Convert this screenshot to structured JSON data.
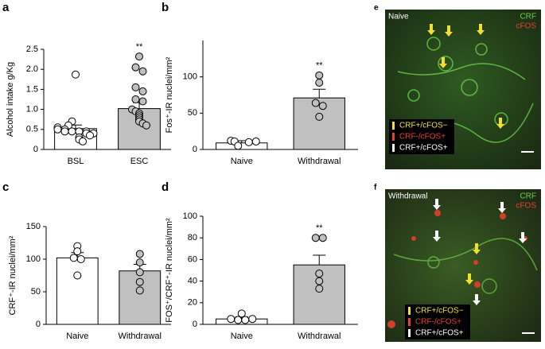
{
  "chart_data": [
    {
      "type": "bar",
      "panel": "a",
      "ylabel": "Alcohol intake g/Kg",
      "categories": [
        "BSL",
        "ESC"
      ],
      "values": [
        0.52,
        1.02
      ],
      "errors": [
        0.09,
        0.15
      ],
      "points": [
        [
          1.87,
          0.7,
          0.6,
          0.55,
          0.5,
          0.5,
          0.45,
          0.45,
          0.45,
          0.45,
          0.4,
          0.4,
          0.35,
          0.3,
          0.25,
          0.2
        ],
        [
          2.32,
          2.05,
          1.95,
          1.55,
          1.45,
          1.25,
          1.2,
          1.0,
          0.95,
          0.9,
          0.85,
          0.8,
          0.75,
          0.7,
          0.65,
          0.6
        ]
      ],
      "bar_colors": [
        "#ffffff",
        "#c0c0c0"
      ],
      "annotation": "**",
      "ylim": [
        0,
        2.5
      ],
      "yticks": [
        0,
        0.5,
        {
          "value": 1,
          "label": "1.0"
        },
        1.5,
        {
          "value": 2,
          "label": "2.0"
        },
        2.5
      ]
    },
    {
      "type": "bar",
      "panel": "b",
      "ylabel": "Fos⁺-IR nuclei/mm²",
      "categories": [
        "Naive",
        "Withdrawal"
      ],
      "values": [
        9,
        71
      ],
      "errors": [
        3,
        12
      ],
      "points": [
        [
          12,
          11,
          5,
          10,
          11
        ],
        [
          102,
          92,
          64,
          60,
          45
        ]
      ],
      "bar_colors": [
        "#ffffff",
        "#c0c0c0"
      ],
      "annotation": "**",
      "ylim": [
        0,
        150
      ],
      "yticks": [
        0,
        50,
        100
      ]
    },
    {
      "type": "bar",
      "panel": "c",
      "ylabel": "CRF⁺-IR nuclei/mm²",
      "categories": [
        "Naive",
        "Withdrawal"
      ],
      "values": [
        102,
        82
      ],
      "errors": [
        8,
        10
      ],
      "points": [
        [
          120,
          112,
          102,
          100,
          75
        ],
        [
          108,
          95,
          80,
          65,
          52
        ]
      ],
      "bar_colors": [
        "#ffffff",
        "#c0c0c0"
      ],
      "ylim": [
        0,
        150
      ],
      "yticks": [
        0,
        50,
        100,
        150
      ]
    },
    {
      "type": "bar",
      "panel": "d",
      "ylabel": "FOS⁺/CRF⁺-IR nuclei/mm²",
      "categories": [
        "Naive",
        "Withdrawal"
      ],
      "values": [
        5,
        55
      ],
      "errors": [
        2,
        9
      ],
      "points": [
        [
          10,
          5,
          4,
          4,
          5
        ],
        [
          80,
          80,
          47,
          40,
          33
        ]
      ],
      "bar_colors": [
        "#ffffff",
        "#c0c0c0"
      ],
      "annotation": "**",
      "ylim": [
        0,
        100
      ],
      "yticks": [
        0,
        20,
        40,
        60,
        80,
        100
      ]
    }
  ],
  "images": [
    {
      "panel": "e",
      "title": "Naive",
      "channels": [
        "CRF",
        "cFOS"
      ],
      "legend": [
        "CRF+/cFOS−",
        "CRF-/cFOS+",
        "CRF+/cFOS+"
      ]
    },
    {
      "panel": "f",
      "title": "Withdrawal",
      "channels": [
        "CRF",
        "cFOS"
      ],
      "legend": [
        "CRF+/cFOS−",
        "CRF-/cFOS+",
        "CRF+/cFOS+"
      ]
    }
  ]
}
